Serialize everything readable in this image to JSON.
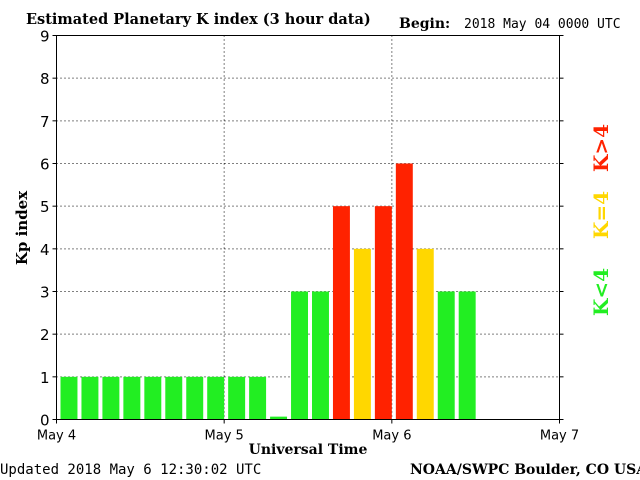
{
  "header": {
    "title": "Estimated Planetary K index (3 hour data)",
    "begin_label": "Begin:",
    "begin_value": "2018 May 04 0000 UTC"
  },
  "footer": {
    "updated": "Updated 2018 May  6 12:30:02 UTC",
    "source": "NOAA/SWPC Boulder, CO USA"
  },
  "legend": {
    "low": "K<4",
    "mid": "K=4",
    "high": "K>4"
  },
  "colors": {
    "low": "#22ee22",
    "mid": "#ffd700",
    "high": "#ff2200"
  },
  "chart_data": {
    "type": "bar",
    "title": "Estimated Planetary K index (3 hour data)",
    "xlabel": "Universal Time",
    "ylabel": "Kp index",
    "ylim": [
      0,
      9
    ],
    "yticks": [
      "0",
      "1",
      "2",
      "3",
      "4",
      "5",
      "6",
      "7",
      "8",
      "9"
    ],
    "xticks": [
      "May 4",
      "May 5",
      "May 6",
      "May 7"
    ],
    "slots_total": 24,
    "grid": true,
    "values": [
      1,
      1,
      1,
      1,
      1,
      1,
      1,
      1,
      1,
      1,
      0.067,
      3,
      3,
      5,
      4,
      5,
      6,
      4,
      3,
      3
    ]
  }
}
